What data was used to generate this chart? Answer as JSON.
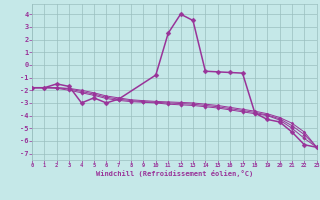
{
  "background_color": "#c5e8e8",
  "grid_color": "#9abfbf",
  "line_color": "#993399",
  "xlabel": "Windchill (Refroidissement éolien,°C)",
  "xlim": [
    0,
    23
  ],
  "ylim": [
    -7.5,
    4.8
  ],
  "yticks": [
    -7,
    -6,
    -5,
    -4,
    -3,
    -2,
    -1,
    0,
    1,
    2,
    3,
    4
  ],
  "xticks": [
    0,
    1,
    2,
    3,
    4,
    5,
    6,
    7,
    8,
    9,
    10,
    11,
    12,
    13,
    14,
    15,
    16,
    17,
    18,
    19,
    20,
    21,
    22,
    23
  ],
  "series": [
    {
      "x": [
        0,
        1,
        2,
        3,
        4,
        5,
        6,
        7,
        10,
        11,
        12,
        13,
        14,
        15,
        16,
        17,
        18,
        19,
        20,
        21,
        22,
        23
      ],
      "y": [
        -1.8,
        -1.8,
        -1.5,
        -1.7,
        -3.0,
        -2.6,
        -3.0,
        -2.7,
        -0.8,
        2.5,
        4.0,
        3.5,
        -0.5,
        -0.55,
        -0.6,
        -0.65,
        -3.8,
        -4.3,
        -4.5,
        -5.3,
        -6.3,
        -6.5
      ],
      "lw": 1.1,
      "ms": 2.5
    },
    {
      "x": [
        0,
        1,
        2,
        3,
        4,
        5,
        6,
        7,
        8,
        9,
        10,
        11,
        12,
        13,
        14,
        15,
        16,
        17,
        18,
        19,
        20,
        21,
        22,
        23
      ],
      "y": [
        -1.8,
        -1.8,
        -1.85,
        -2.0,
        -2.2,
        -2.4,
        -2.65,
        -2.8,
        -2.9,
        -2.95,
        -3.0,
        -3.1,
        -3.15,
        -3.2,
        -3.3,
        -3.4,
        -3.55,
        -3.7,
        -3.85,
        -4.0,
        -4.35,
        -5.0,
        -5.8,
        -6.5
      ],
      "lw": 0.7,
      "ms": 1.8
    },
    {
      "x": [
        0,
        1,
        2,
        3,
        4,
        5,
        6,
        7,
        8,
        9,
        10,
        11,
        12,
        13,
        14,
        15,
        16,
        17,
        18,
        19,
        20,
        21,
        22,
        23
      ],
      "y": [
        -1.8,
        -1.8,
        -1.8,
        -1.9,
        -2.1,
        -2.3,
        -2.55,
        -2.7,
        -2.82,
        -2.9,
        -2.95,
        -3.0,
        -3.05,
        -3.1,
        -3.2,
        -3.3,
        -3.45,
        -3.6,
        -3.75,
        -3.95,
        -4.25,
        -4.8,
        -5.5,
        -6.5
      ],
      "lw": 0.7,
      "ms": 1.8
    },
    {
      "x": [
        0,
        1,
        2,
        3,
        4,
        5,
        6,
        7,
        8,
        9,
        10,
        11,
        12,
        13,
        14,
        15,
        16,
        17,
        18,
        19,
        20,
        21,
        22,
        23
      ],
      "y": [
        -1.8,
        -1.8,
        -1.8,
        -1.85,
        -2.0,
        -2.2,
        -2.45,
        -2.6,
        -2.75,
        -2.82,
        -2.88,
        -2.92,
        -2.96,
        -3.0,
        -3.1,
        -3.2,
        -3.35,
        -3.5,
        -3.65,
        -3.85,
        -4.15,
        -4.6,
        -5.3,
        -6.5
      ],
      "lw": 0.7,
      "ms": 1.5
    }
  ]
}
